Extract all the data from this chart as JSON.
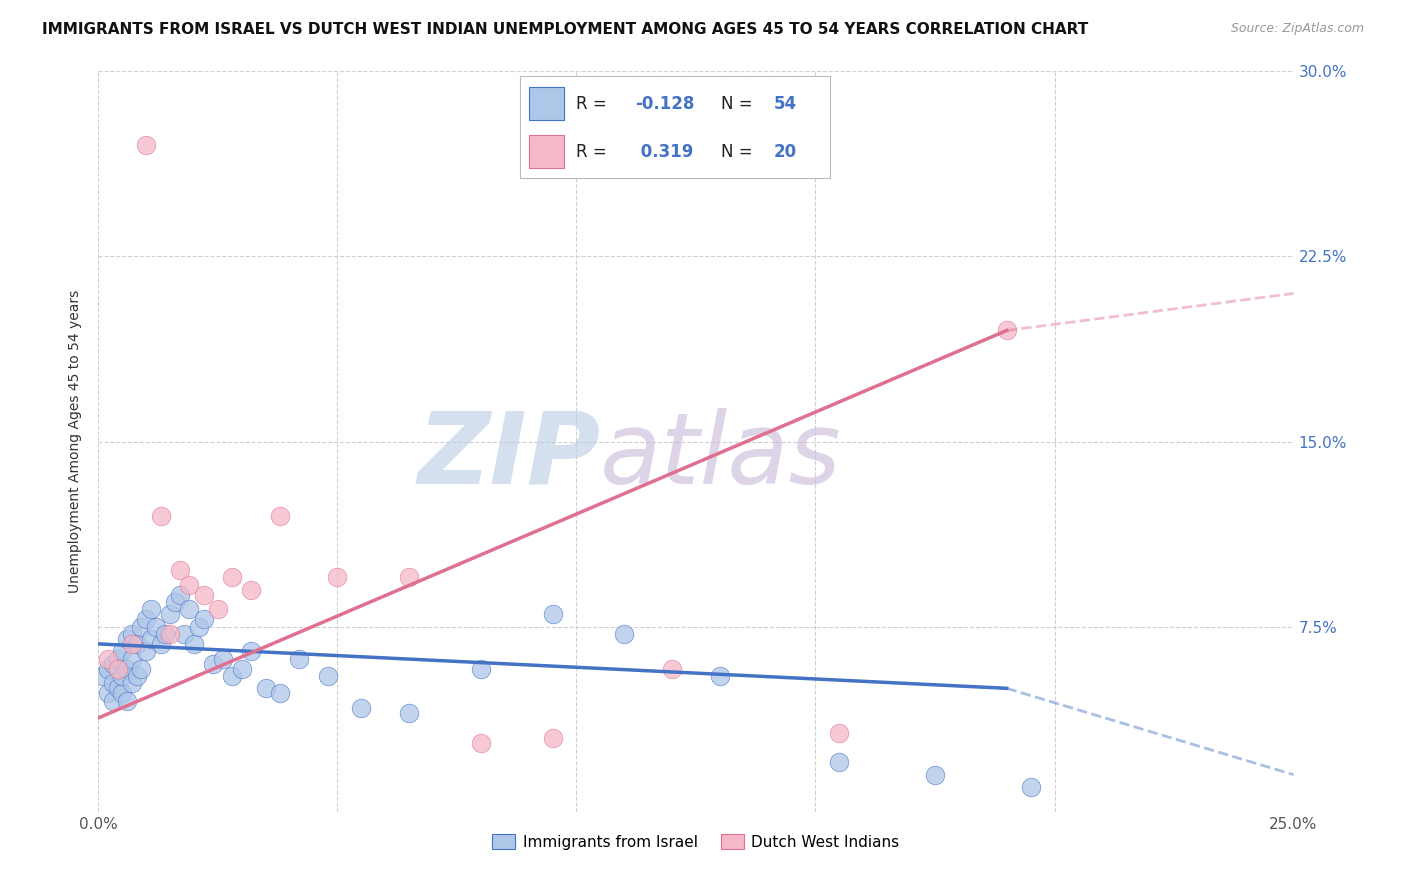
{
  "title": "IMMIGRANTS FROM ISRAEL VS DUTCH WEST INDIAN UNEMPLOYMENT AMONG AGES 45 TO 54 YEARS CORRELATION CHART",
  "source": "Source: ZipAtlas.com",
  "ylabel": "Unemployment Among Ages 45 to 54 years",
  "xlim": [
    0.0,
    0.25
  ],
  "ylim": [
    0.0,
    0.3
  ],
  "xticks": [
    0.0,
    0.05,
    0.1,
    0.15,
    0.2,
    0.25
  ],
  "xticklabels": [
    "0.0%",
    "",
    "",
    "",
    "",
    "25.0%"
  ],
  "yticks": [
    0.0,
    0.075,
    0.15,
    0.225,
    0.3
  ],
  "yticklabels_right": [
    "",
    "7.5%",
    "15.0%",
    "22.5%",
    "30.0%"
  ],
  "legend_labels": [
    "Immigrants from Israel",
    "Dutch West Indians"
  ],
  "blue_color": "#aec6e8",
  "pink_color": "#f4b8c8",
  "blue_line_color": "#4472c4",
  "pink_line_color": "#e07090",
  "watermark_zip": "ZIP",
  "watermark_atlas": "atlas",
  "watermark_color_zip": "#b8cce4",
  "watermark_color_atlas": "#c8b8d8",
  "blue_x": [
    0.001,
    0.002,
    0.002,
    0.003,
    0.003,
    0.003,
    0.004,
    0.004,
    0.005,
    0.005,
    0.005,
    0.006,
    0.006,
    0.006,
    0.007,
    0.007,
    0.007,
    0.008,
    0.008,
    0.009,
    0.009,
    0.01,
    0.01,
    0.011,
    0.011,
    0.012,
    0.013,
    0.014,
    0.015,
    0.016,
    0.017,
    0.018,
    0.019,
    0.02,
    0.021,
    0.022,
    0.024,
    0.026,
    0.028,
    0.03,
    0.032,
    0.035,
    0.038,
    0.042,
    0.048,
    0.055,
    0.065,
    0.08,
    0.095,
    0.11,
    0.13,
    0.155,
    0.175,
    0.195
  ],
  "blue_y": [
    0.055,
    0.048,
    0.058,
    0.045,
    0.052,
    0.06,
    0.05,
    0.062,
    0.048,
    0.055,
    0.065,
    0.045,
    0.058,
    0.07,
    0.052,
    0.062,
    0.072,
    0.055,
    0.068,
    0.058,
    0.075,
    0.065,
    0.078,
    0.07,
    0.082,
    0.075,
    0.068,
    0.072,
    0.08,
    0.085,
    0.088,
    0.072,
    0.082,
    0.068,
    0.075,
    0.078,
    0.06,
    0.062,
    0.055,
    0.058,
    0.065,
    0.05,
    0.048,
    0.062,
    0.055,
    0.042,
    0.04,
    0.058,
    0.08,
    0.072,
    0.055,
    0.02,
    0.015,
    0.01
  ],
  "pink_x": [
    0.002,
    0.004,
    0.007,
    0.01,
    0.013,
    0.015,
    0.017,
    0.019,
    0.022,
    0.025,
    0.028,
    0.032,
    0.038,
    0.05,
    0.065,
    0.08,
    0.095,
    0.12,
    0.155,
    0.19
  ],
  "pink_y": [
    0.062,
    0.058,
    0.068,
    0.27,
    0.12,
    0.072,
    0.098,
    0.092,
    0.088,
    0.082,
    0.095,
    0.09,
    0.12,
    0.095,
    0.095,
    0.028,
    0.03,
    0.058,
    0.032,
    0.195
  ],
  "blue_trend_x": [
    0.0,
    0.195,
    0.25
  ],
  "blue_trend_y_start": 0.068,
  "blue_trend_y_end_solid": 0.05,
  "blue_trend_y_end_dashed": 0.015,
  "pink_trend_x": [
    0.0,
    0.19,
    0.25
  ],
  "pink_trend_y_start": 0.038,
  "pink_trend_y_end_solid": 0.195,
  "pink_trend_y_end_dashed": 0.21,
  "title_fontsize": 11,
  "tick_fontsize": 11,
  "legend_fontsize": 13,
  "source_fontsize": 9
}
